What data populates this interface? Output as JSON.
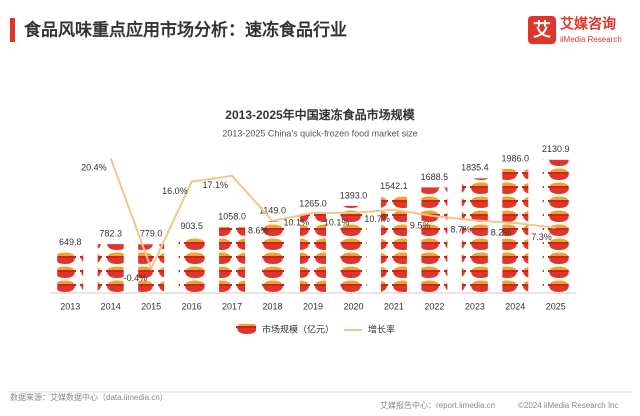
{
  "header": {
    "title": "食品风味重点应用市场分析：速冻食品行业",
    "logo": "艾媒咨询",
    "logo_sub": "iiMedia Research"
  },
  "chart_data": {
    "type": "bar",
    "title": "2013-2025年中国速冻食品市场规模",
    "subtitle": "2013-2025 China's quick-frozen food market size",
    "categories": [
      "2013",
      "2014",
      "2015",
      "2016",
      "2017",
      "2018",
      "2019",
      "2020",
      "2021",
      "2022",
      "2023",
      "2024",
      "2025"
    ],
    "series": [
      {
        "name": "市场规模（亿元）",
        "color": "#e0352b",
        "values": [
          649.8,
          782.3,
          779.0,
          903.5,
          1058.0,
          1149.0,
          1265.0,
          1393.0,
          1542.1,
          1688.5,
          1835.4,
          1986.0,
          2130.9
        ],
        "value_labels": [
          "649.8",
          "782.3",
          "779.0",
          "903.5",
          "1058.0",
          "1149.0",
          "1265.0",
          "1393.0",
          "1542.1",
          "1688.5",
          "1835.4",
          "1986.0",
          "2130.9"
        ]
      },
      {
        "name": "增长率",
        "type": "line",
        "axis": "y2",
        "color": "#f5c48a",
        "values": [
          null,
          20.4,
          -0.4,
          16.0,
          17.1,
          8.6,
          10.1,
          10.1,
          10.7,
          9.5,
          8.7,
          8.2,
          7.3
        ],
        "value_labels": [
          null,
          "20.4%",
          "-0.4%",
          "16.0%",
          "17.1%",
          "8.6%",
          "10.1%",
          "10.1%",
          "10.7%",
          "9.5%",
          "8.7%",
          "8.2%",
          "7.3%"
        ]
      }
    ],
    "ylim": [
      0,
      2800
    ],
    "y2lim": [
      -5,
      28
    ],
    "legend": "bottom"
  },
  "footer": {
    "source": "数据来源：艾媒数据中心（data.iimedia.cn）",
    "report": "艾媒报告中心：report.iimedia.cn",
    "copyright": "©2024  iiMedia Research Inc"
  }
}
